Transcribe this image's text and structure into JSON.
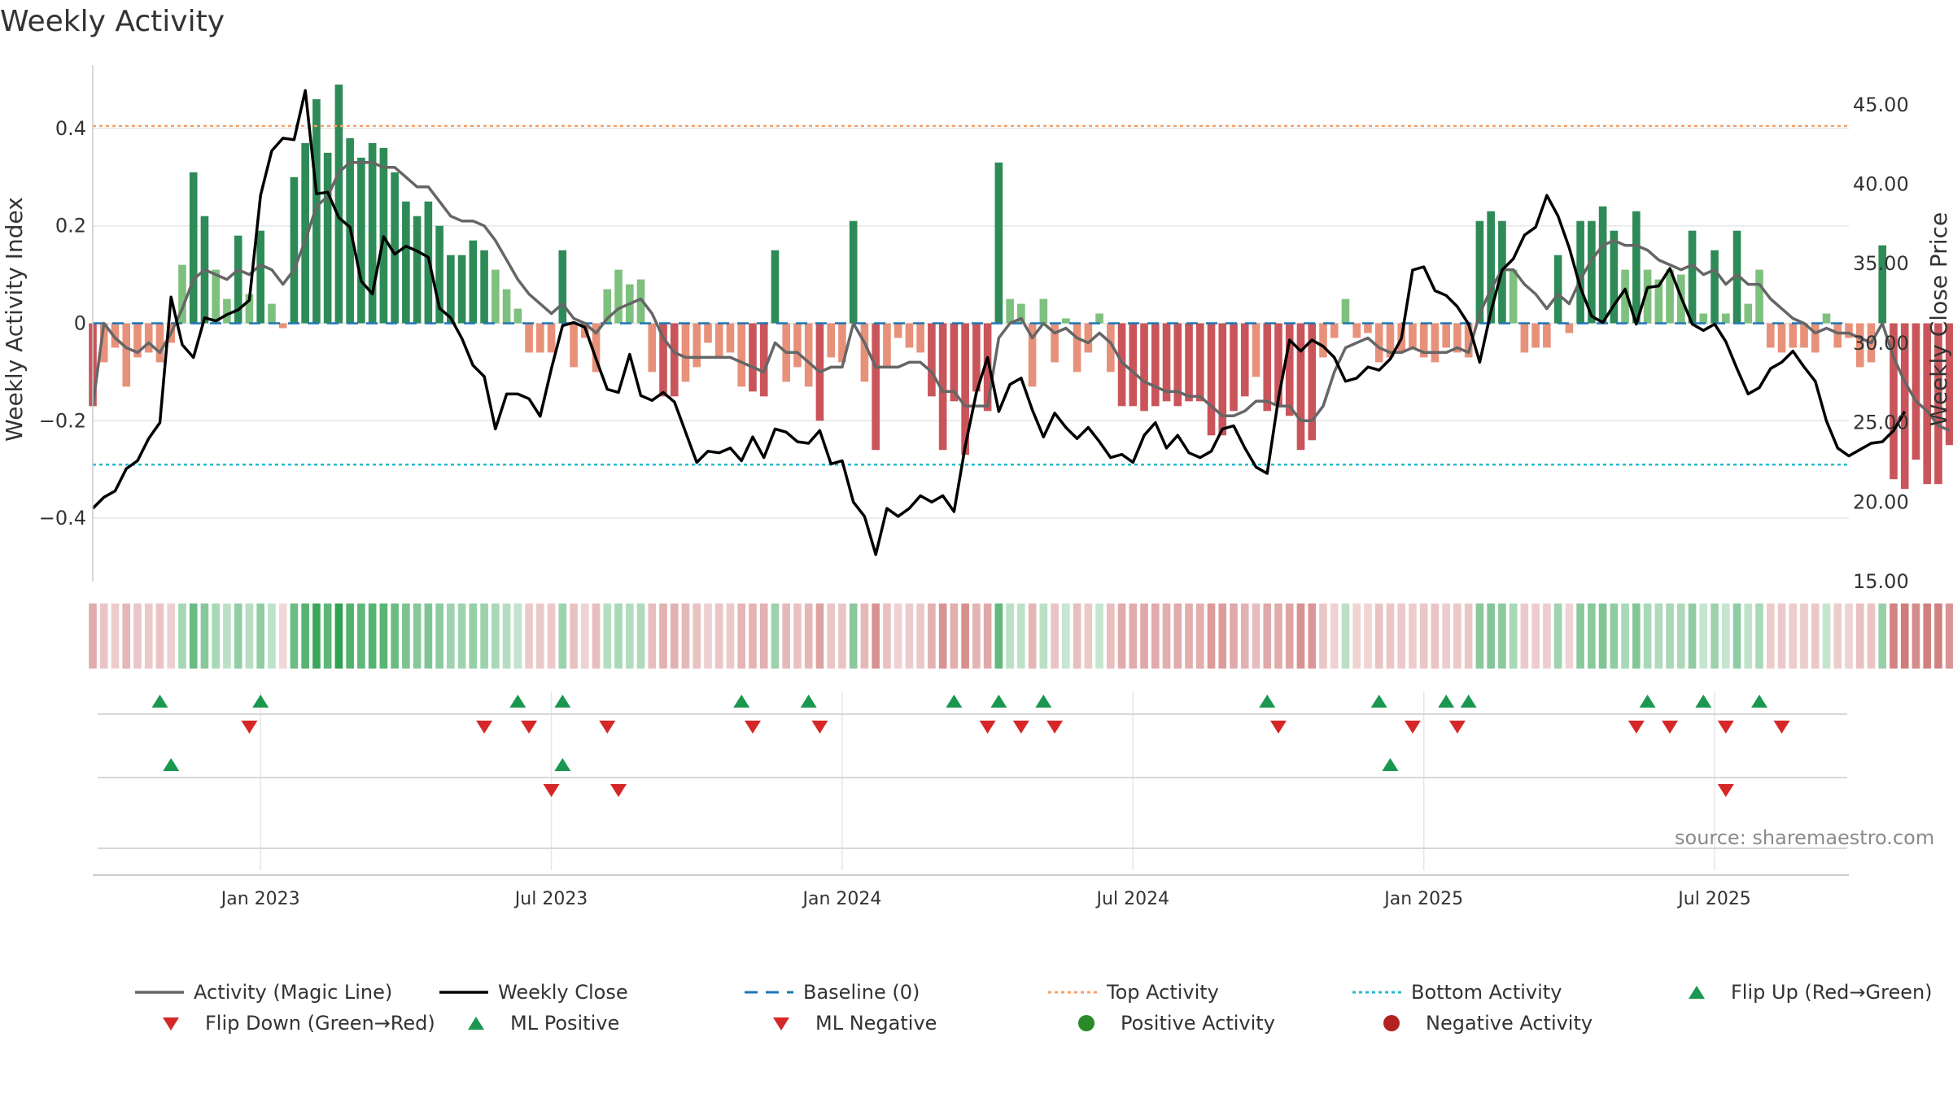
{
  "title": "Weekly Activity",
  "source": "source: sharemaestro.com",
  "colors": {
    "pos_dark": "#2e8b57",
    "pos_light": "#7ec07e",
    "neg_dark": "#c9555a",
    "neg_light": "#e8917a",
    "magic_line": "#666666",
    "close_line": "#000000",
    "baseline": "#1f77b4",
    "top_line": "#f4a26a",
    "bottom_line": "#22bcd0",
    "flip_up": "#1a9850",
    "flip_down": "#d62728",
    "ml_pos": "#1a9850",
    "ml_neg": "#d62728",
    "grid": "#e6e6e6"
  },
  "chart_data": {
    "type": "bar",
    "title": "Weekly Activity",
    "ylabel": "Weekly Activity Index",
    "y2label": "Weekly Close Price",
    "ylim": [
      -0.53,
      0.53
    ],
    "y2lim": [
      15,
      47.5
    ],
    "yticks": [
      0.4,
      0.2,
      0,
      -0.2,
      -0.4
    ],
    "ytick_labels": [
      "0.4",
      "0.2",
      "0",
      "−0.2",
      "−0.4"
    ],
    "y2ticks": [
      45,
      40,
      35,
      30,
      25,
      20,
      15
    ],
    "y2tick_labels": [
      "45.00",
      "40.00",
      "35.00",
      "30.00",
      "25.00",
      "20.00",
      "15.00"
    ],
    "x_start_week": 0,
    "x_ticks": [
      {
        "label": "Jan 2023",
        "week": 15
      },
      {
        "label": "Jul 2023",
        "week": 41
      },
      {
        "label": "Jan 2024",
        "week": 67
      },
      {
        "label": "Jul 2024",
        "week": 93
      },
      {
        "label": "Jan 2025",
        "week": 119
      },
      {
        "label": "Jul 2025",
        "week": 145
      }
    ],
    "top_activity": 0.405,
    "bottom_activity": -0.29,
    "activity": [
      -0.17,
      -0.08,
      -0.05,
      -0.13,
      -0.07,
      -0.06,
      -0.08,
      -0.04,
      0.12,
      0.31,
      0.22,
      0.11,
      0.05,
      0.18,
      0.06,
      0.19,
      0.04,
      -0.01,
      0.3,
      0.37,
      0.46,
      0.35,
      0.49,
      0.38,
      0.34,
      0.37,
      0.36,
      0.31,
      0.25,
      0.22,
      0.25,
      0.2,
      0.14,
      0.14,
      0.17,
      0.15,
      0.11,
      0.07,
      0.03,
      -0.06,
      -0.06,
      -0.06,
      0.15,
      -0.09,
      -0.03,
      -0.1,
      0.07,
      0.11,
      0.08,
      0.09,
      -0.1,
      -0.15,
      -0.15,
      -0.12,
      -0.09,
      -0.04,
      -0.07,
      -0.06,
      -0.13,
      -0.14,
      -0.15,
      0.15,
      -0.12,
      -0.09,
      -0.13,
      -0.2,
      -0.07,
      -0.08,
      0.21,
      -0.12,
      -0.26,
      -0.09,
      -0.03,
      -0.05,
      -0.06,
      -0.15,
      -0.26,
      -0.16,
      -0.27,
      -0.14,
      -0.18,
      0.33,
      0.05,
      0.04,
      -0.13,
      0.05,
      -0.08,
      0.01,
      -0.1,
      -0.06,
      0.02,
      -0.1,
      -0.17,
      -0.17,
      -0.18,
      -0.17,
      -0.16,
      -0.17,
      -0.16,
      -0.16,
      -0.23,
      -0.23,
      -0.18,
      -0.15,
      -0.11,
      -0.18,
      -0.17,
      -0.19,
      -0.26,
      -0.24,
      -0.07,
      -0.03,
      0.05,
      -0.03,
      -0.02,
      -0.08,
      -0.07,
      -0.06,
      -0.05,
      -0.07,
      -0.08,
      -0.05,
      -0.06,
      -0.07,
      0.21,
      0.23,
      0.21,
      0.11,
      -0.06,
      -0.05,
      -0.05,
      0.14,
      -0.02,
      0.21,
      0.21,
      0.24,
      0.19,
      0.11,
      0.23,
      0.11,
      0.09,
      0.11,
      0.1,
      0.19,
      0.02,
      0.15,
      0.02,
      0.19,
      0.04,
      0.11,
      -0.05,
      -0.06,
      -0.05,
      -0.05,
      -0.06,
      0.02,
      -0.05,
      -0.03,
      -0.09,
      -0.08,
      0.16,
      -0.32,
      -0.34,
      -0.28,
      -0.33,
      -0.33,
      -0.25
    ],
    "magic_line": [
      -0.17,
      0.0,
      -0.03,
      -0.05,
      -0.06,
      -0.04,
      -0.06,
      -0.02,
      0.03,
      0.09,
      0.11,
      0.1,
      0.09,
      0.11,
      0.1,
      0.12,
      0.11,
      0.08,
      0.11,
      0.17,
      0.24,
      0.26,
      0.31,
      0.33,
      0.33,
      0.33,
      0.32,
      0.32,
      0.3,
      0.28,
      0.28,
      0.25,
      0.22,
      0.21,
      0.21,
      0.2,
      0.17,
      0.13,
      0.09,
      0.06,
      0.04,
      0.02,
      0.04,
      0.01,
      0.0,
      -0.02,
      0.01,
      0.03,
      0.04,
      0.05,
      0.02,
      -0.03,
      -0.06,
      -0.07,
      -0.07,
      -0.07,
      -0.07,
      -0.07,
      -0.08,
      -0.09,
      -0.1,
      -0.04,
      -0.06,
      -0.06,
      -0.08,
      -0.1,
      -0.09,
      -0.09,
      0.0,
      -0.04,
      -0.09,
      -0.09,
      -0.09,
      -0.08,
      -0.08,
      -0.1,
      -0.14,
      -0.14,
      -0.17,
      -0.17,
      -0.17,
      -0.03,
      0.0,
      0.01,
      -0.03,
      0.0,
      -0.02,
      -0.01,
      -0.03,
      -0.04,
      -0.02,
      -0.04,
      -0.08,
      -0.1,
      -0.12,
      -0.13,
      -0.14,
      -0.14,
      -0.15,
      -0.15,
      -0.17,
      -0.19,
      -0.19,
      -0.18,
      -0.16,
      -0.16,
      -0.17,
      -0.17,
      -0.2,
      -0.2,
      -0.17,
      -0.1,
      -0.05,
      -0.04,
      -0.03,
      -0.05,
      -0.06,
      -0.06,
      -0.05,
      -0.06,
      -0.06,
      -0.06,
      -0.05,
      -0.06,
      0.02,
      0.07,
      0.11,
      0.11,
      0.08,
      0.06,
      0.03,
      0.06,
      0.04,
      0.09,
      0.13,
      0.16,
      0.17,
      0.16,
      0.16,
      0.15,
      0.13,
      0.12,
      0.11,
      0.12,
      0.1,
      0.11,
      0.08,
      0.1,
      0.08,
      0.08,
      0.05,
      0.03,
      0.01,
      0.0,
      -0.02,
      -0.01,
      -0.02,
      -0.02,
      -0.03,
      -0.04,
      0.0,
      -0.07,
      -0.12,
      -0.16,
      -0.18,
      -0.21,
      -0.22
    ],
    "weekly_close": [
      19.6,
      20.3,
      20.7,
      22.1,
      22.6,
      24.0,
      25.0,
      32.9,
      29.9,
      29.1,
      31.6,
      31.4,
      31.8,
      32.1,
      32.7,
      39.3,
      42.1,
      42.9,
      42.8,
      45.9,
      39.4,
      39.5,
      37.9,
      37.3,
      33.9,
      33.1,
      36.7,
      35.6,
      36.1,
      35.8,
      35.4,
      32.2,
      31.6,
      30.3,
      28.6,
      27.9,
      24.6,
      26.8,
      26.8,
      26.5,
      25.4,
      28.4,
      31.1,
      31.3,
      31.0,
      29.0,
      27.1,
      26.9,
      29.3,
      26.7,
      26.4,
      26.9,
      26.3,
      24.4,
      22.5,
      23.2,
      23.1,
      23.4,
      22.6,
      24.1,
      22.8,
      24.6,
      24.4,
      23.8,
      23.7,
      24.5,
      22.4,
      22.6,
      20.0,
      19.1,
      16.7,
      19.6,
      19.1,
      19.6,
      20.4,
      20.0,
      20.4,
      19.4,
      23.5,
      26.9,
      29.1,
      25.7,
      27.4,
      27.8,
      25.8,
      24.1,
      25.6,
      24.7,
      24.0,
      24.7,
      23.8,
      22.8,
      23.0,
      22.5,
      24.2,
      25.0,
      23.4,
      24.2,
      23.1,
      22.8,
      23.2,
      24.6,
      24.8,
      23.4,
      22.2,
      21.8,
      26.5,
      30.2,
      29.5,
      30.2,
      29.8,
      29.1,
      27.6,
      27.8,
      28.5,
      28.3,
      29.0,
      30.3,
      34.6,
      34.8,
      33.3,
      33.0,
      32.3,
      31.2,
      28.8,
      32.0,
      34.6,
      35.3,
      36.8,
      37.3,
      39.3,
      38.0,
      36.0,
      33.5,
      31.7,
      31.3,
      32.4,
      33.4,
      31.2,
      33.5,
      33.6,
      34.7,
      32.9,
      31.2,
      30.8,
      31.2,
      30.1,
      28.4,
      26.8,
      27.2,
      28.4,
      28.8,
      29.5,
      28.5,
      27.6,
      25.1,
      23.4,
      22.9,
      23.3,
      23.7,
      23.8,
      24.5,
      25.7
    ],
    "flip_up_weeks": [
      6,
      15,
      38,
      42,
      58,
      64,
      77,
      81,
      85,
      105,
      115,
      121,
      123,
      139,
      144,
      149
    ],
    "flip_down_weeks": [
      14,
      35,
      39,
      46,
      59,
      65,
      80,
      83,
      86,
      106,
      118,
      122,
      138,
      141,
      146,
      151
    ],
    "ml_positive_weeks": [
      7,
      42,
      116
    ],
    "ml_negative_weeks": [
      41,
      47,
      146
    ],
    "x_weeks": [
      0,
      157
    ],
    "legend": [
      {
        "label": "Activity (Magic Line)",
        "symbol": "solid-line",
        "color_key": "magic_line"
      },
      {
        "label": "Weekly Close",
        "symbol": "solid-line",
        "color_key": "close_line"
      },
      {
        "label": "Baseline (0)",
        "symbol": "dashed-line",
        "color_key": "baseline"
      },
      {
        "label": "Top Activity",
        "symbol": "dotted-line",
        "color_key": "top_line"
      },
      {
        "label": "Bottom Activity",
        "symbol": "dotted-line",
        "color_key": "bottom_line"
      },
      {
        "label": "Flip Up (Red→Green)",
        "symbol": "triangle-up",
        "color_key": "flip_up"
      },
      {
        "label": "Flip Down (Green→Red)",
        "symbol": "triangle-down",
        "color_key": "flip_down"
      },
      {
        "label": "ML Positive",
        "symbol": "triangle-up",
        "color_key": "ml_pos"
      },
      {
        "label": "ML Negative",
        "symbol": "triangle-down",
        "color_key": "ml_neg"
      },
      {
        "label": "Positive Activity",
        "symbol": "dot",
        "color_key": "pos_dot"
      },
      {
        "label": "Negative Activity",
        "symbol": "dot",
        "color_key": "neg_dot"
      }
    ],
    "legend_colors": {
      "pos_dot": "#2a8a2a",
      "neg_dot": "#b22222"
    }
  }
}
